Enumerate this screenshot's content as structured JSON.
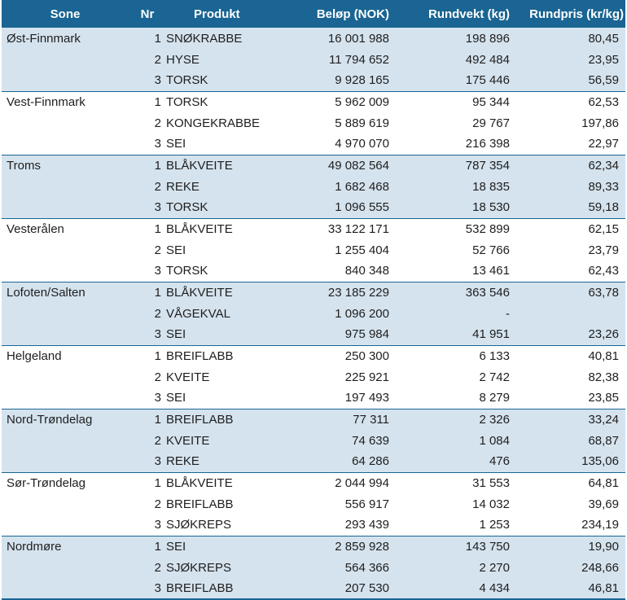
{
  "header": {
    "sone": "Sone",
    "nr": "Nr",
    "produkt": "Produkt",
    "belop": "Beløp (NOK)",
    "rundvekt": "Rundvekt (kg)",
    "rundpris": "Rundpris (kr/kg)"
  },
  "zones": [
    {
      "name": "Øst-Finnmark",
      "rows": [
        {
          "nr": "1",
          "produkt": "SNØKRABBE",
          "belop": "16 001 988",
          "rundvekt": "198 896",
          "rundpris": "80,45"
        },
        {
          "nr": "2",
          "produkt": "HYSE",
          "belop": "11 794 652",
          "rundvekt": "492 484",
          "rundpris": "23,95"
        },
        {
          "nr": "3",
          "produkt": "TORSK",
          "belop": "9 928 165",
          "rundvekt": "175 446",
          "rundpris": "56,59"
        }
      ]
    },
    {
      "name": "Vest-Finnmark",
      "rows": [
        {
          "nr": "1",
          "produkt": "TORSK",
          "belop": "5 962 009",
          "rundvekt": "95 344",
          "rundpris": "62,53"
        },
        {
          "nr": "2",
          "produkt": "KONGEKRABBE",
          "belop": "5 889 619",
          "rundvekt": "29 767",
          "rundpris": "197,86"
        },
        {
          "nr": "3",
          "produkt": "SEI",
          "belop": "4 970 070",
          "rundvekt": "216 398",
          "rundpris": "22,97"
        }
      ]
    },
    {
      "name": "Troms",
      "rows": [
        {
          "nr": "1",
          "produkt": "BLÅKVEITE",
          "belop": "49 082 564",
          "rundvekt": "787 354",
          "rundpris": "62,34"
        },
        {
          "nr": "2",
          "produkt": "REKE",
          "belop": "1 682 468",
          "rundvekt": "18 835",
          "rundpris": "89,33"
        },
        {
          "nr": "3",
          "produkt": "TORSK",
          "belop": "1 096 555",
          "rundvekt": "18 530",
          "rundpris": "59,18"
        }
      ]
    },
    {
      "name": "Vesterålen",
      "rows": [
        {
          "nr": "1",
          "produkt": "BLÅKVEITE",
          "belop": "33 122 171",
          "rundvekt": "532 899",
          "rundpris": "62,15"
        },
        {
          "nr": "2",
          "produkt": "SEI",
          "belop": "1 255 404",
          "rundvekt": "52 766",
          "rundpris": "23,79"
        },
        {
          "nr": "3",
          "produkt": "TORSK",
          "belop": "840 348",
          "rundvekt": "13 461",
          "rundpris": "62,43"
        }
      ]
    },
    {
      "name": "Lofoten/Salten",
      "rows": [
        {
          "nr": "1",
          "produkt": "BLÅKVEITE",
          "belop": "23 185 229",
          "rundvekt": "363 546",
          "rundpris": "63,78"
        },
        {
          "nr": "2",
          "produkt": "VÅGEKVAL",
          "belop": "1 096 200",
          "rundvekt": "-",
          "rundpris": ""
        },
        {
          "nr": "3",
          "produkt": "SEI",
          "belop": "975 984",
          "rundvekt": "41 951",
          "rundpris": "23,26"
        }
      ]
    },
    {
      "name": "Helgeland",
      "rows": [
        {
          "nr": "1",
          "produkt": "BREIFLABB",
          "belop": "250 300",
          "rundvekt": "6 133",
          "rundpris": "40,81"
        },
        {
          "nr": "2",
          "produkt": "KVEITE",
          "belop": "225 921",
          "rundvekt": "2 742",
          "rundpris": "82,38"
        },
        {
          "nr": "3",
          "produkt": "SEI",
          "belop": "197 493",
          "rundvekt": "8 279",
          "rundpris": "23,85"
        }
      ]
    },
    {
      "name": "Nord-Trøndelag",
      "rows": [
        {
          "nr": "1",
          "produkt": "BREIFLABB",
          "belop": "77 311",
          "rundvekt": "2 326",
          "rundpris": "33,24"
        },
        {
          "nr": "2",
          "produkt": "KVEITE",
          "belop": "74 639",
          "rundvekt": "1 084",
          "rundpris": "68,87"
        },
        {
          "nr": "3",
          "produkt": "REKE",
          "belop": "64 286",
          "rundvekt": "476",
          "rundpris": "135,06"
        }
      ]
    },
    {
      "name": "Sør-Trøndelag",
      "rows": [
        {
          "nr": "1",
          "produkt": "BLÅKVEITE",
          "belop": "2 044 994",
          "rundvekt": "31 553",
          "rundpris": "64,81"
        },
        {
          "nr": "2",
          "produkt": "BREIFLABB",
          "belop": "556 917",
          "rundvekt": "14 032",
          "rundpris": "39,69"
        },
        {
          "nr": "3",
          "produkt": "SJØKREPS",
          "belop": "293 439",
          "rundvekt": "1 253",
          "rundpris": "234,19"
        }
      ]
    },
    {
      "name": "Nordmøre",
      "rows": [
        {
          "nr": "1",
          "produkt": "SEI",
          "belop": "2 859 928",
          "rundvekt": "143 750",
          "rundpris": "19,90"
        },
        {
          "nr": "2",
          "produkt": "SJØKREPS",
          "belop": "564 366",
          "rundvekt": "2 270",
          "rundpris": "248,66"
        },
        {
          "nr": "3",
          "produkt": "BREIFLABB",
          "belop": "207 530",
          "rundvekt": "4 434",
          "rundpris": "46,81"
        }
      ]
    }
  ]
}
